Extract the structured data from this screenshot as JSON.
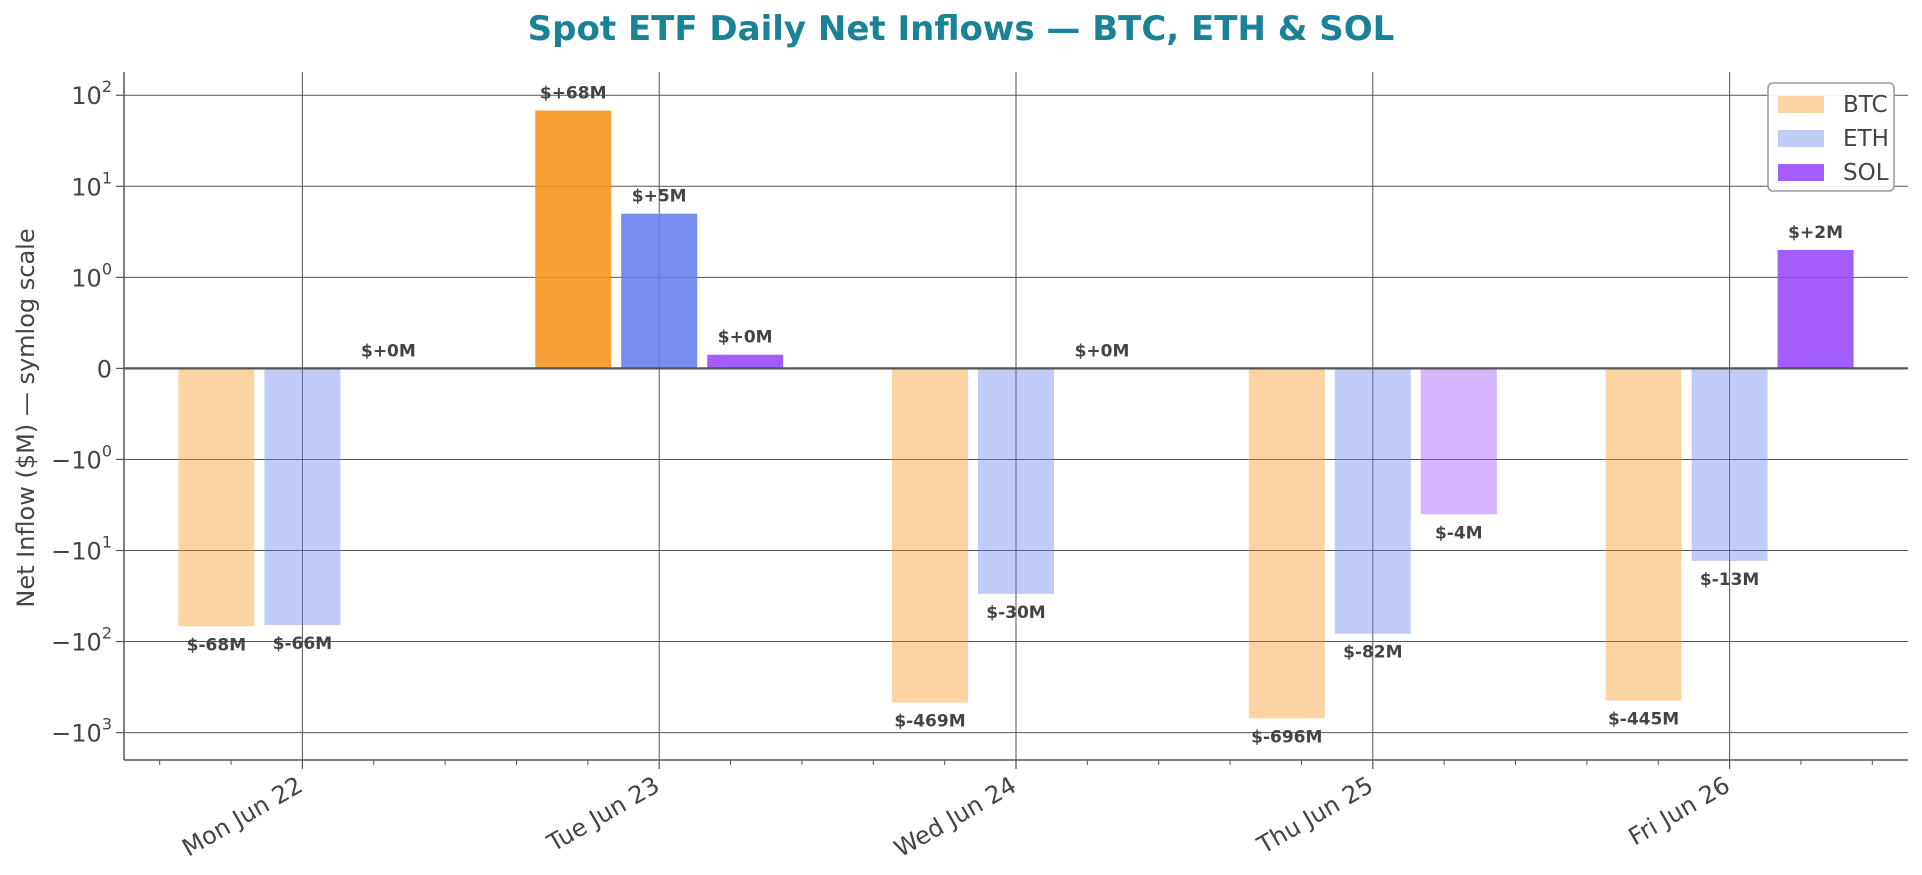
{
  "chart_data": {
    "type": "bar",
    "title": "Spot ETF Daily Net Inflows — BTC, ETH & SOL",
    "ylabel": "Net Inflow ($M) — symlog scale",
    "xlabel": "",
    "yscale": "symlog",
    "ylim": [
      -2000,
      180
    ],
    "grid": true,
    "legend_position": "top-right",
    "categories": [
      "Mon Jun 22",
      "Tue Jun 23",
      "Wed Jun 24",
      "Thu Jun 25",
      "Fri Jun 26"
    ],
    "series": [
      {
        "name": "BTC",
        "color": "#f7931a",
        "values": [
          -68,
          68,
          -469,
          -696,
          -445
        ],
        "labels": [
          "$-68M",
          "$+68M",
          "$-469M",
          "$-696M",
          "$-445M"
        ],
        "highlight": [
          false,
          true,
          false,
          false,
          false
        ]
      },
      {
        "name": "ETH",
        "color": "#627eea",
        "values": [
          -66,
          5,
          -30,
          -82,
          -13
        ],
        "labels": [
          "$-66M",
          "$+5M",
          "$-30M",
          "$-82M",
          "$-13M"
        ],
        "highlight": [
          false,
          true,
          false,
          false,
          false
        ]
      },
      {
        "name": "SOL",
        "color": "#9945ff",
        "values": [
          0,
          0.15,
          0,
          -4,
          2
        ],
        "labels": [
          "$+0M",
          "$+0M",
          "$+0M",
          "$-4M",
          "$+2M"
        ],
        "highlight": [
          false,
          true,
          false,
          false,
          true
        ]
      }
    ],
    "y_ticks": [
      {
        "value": 100,
        "base": "10",
        "exp": "2"
      },
      {
        "value": 10,
        "base": "10",
        "exp": "1"
      },
      {
        "value": 1,
        "base": "10",
        "exp": "0"
      },
      {
        "value": 0,
        "base": "0",
        "exp": ""
      },
      {
        "value": -1,
        "base": "−10",
        "exp": "0"
      },
      {
        "value": -10,
        "base": "−10",
        "exp": "1"
      },
      {
        "value": -100,
        "base": "−10",
        "exp": "2"
      },
      {
        "value": -1000,
        "base": "−10",
        "exp": "3"
      }
    ],
    "colors": {
      "title": "#1a8296",
      "text": "#444444",
      "grid": "#555555",
      "axis": "#555555"
    }
  }
}
